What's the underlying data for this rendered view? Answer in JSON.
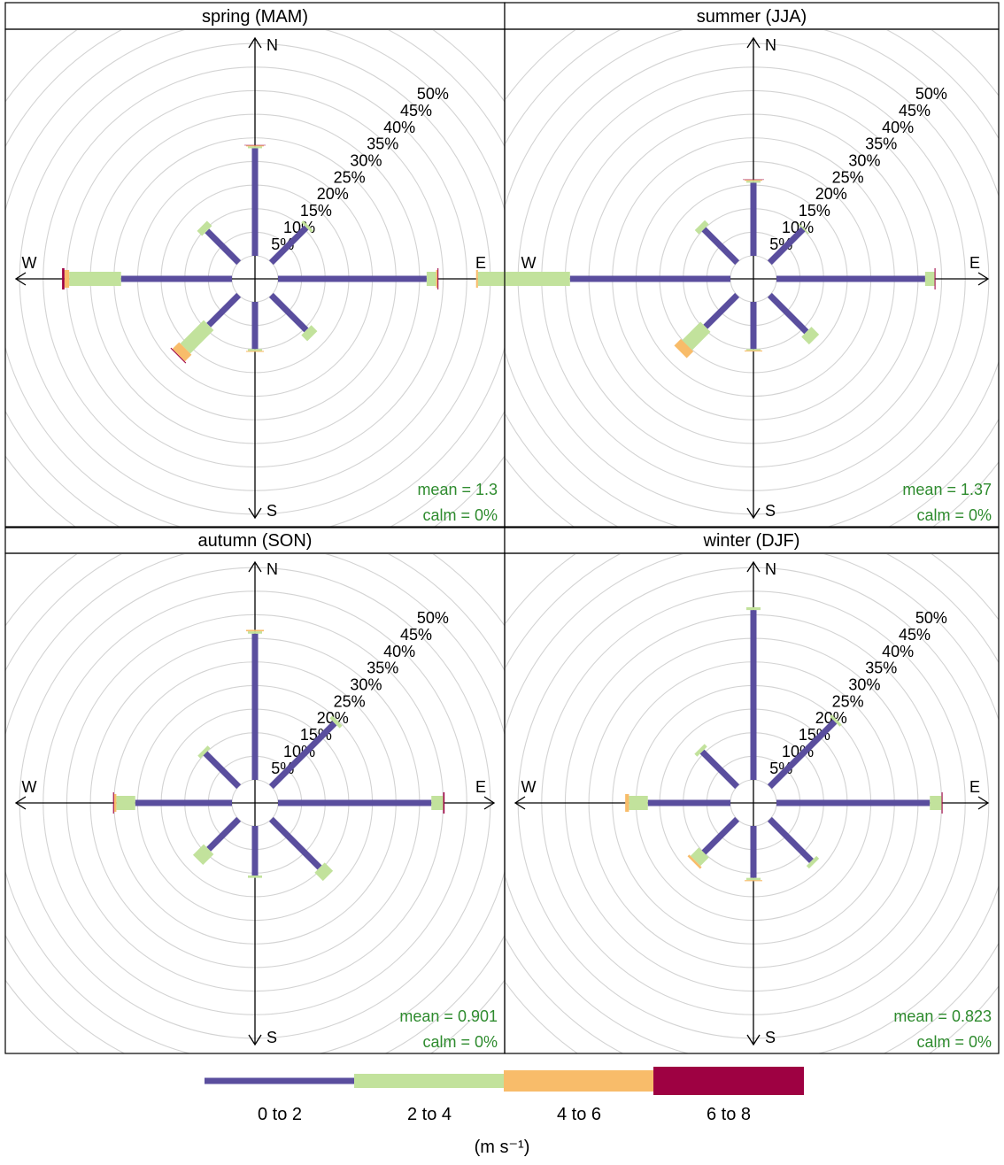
{
  "units_label": "(m s⁻¹)",
  "chart_data": {
    "type": "windrose",
    "axis": {
      "directions": [
        "N",
        "NE",
        "E",
        "SE",
        "S",
        "SW",
        "W",
        "NW"
      ],
      "compass_labels": [
        "N",
        "E",
        "S",
        "W"
      ],
      "ring_step_percent": 5,
      "ring_labels": [
        "5%",
        "10%",
        "15%",
        "20%",
        "25%",
        "30%",
        "35%",
        "40%",
        "45%",
        "50%"
      ],
      "grid": true
    },
    "legend": {
      "placement": "bottom",
      "bins": [
        {
          "label": "0 to 2",
          "color": "#5A4E9E"
        },
        {
          "label": "2 to 4",
          "color": "#C2E29C"
        },
        {
          "label": "4 to 6",
          "color": "#F8BC6A"
        },
        {
          "label": "6 to 8",
          "color": "#9E0142"
        }
      ]
    },
    "panels": [
      {
        "title": "spring (MAM)",
        "mean_text": "mean = 1.3",
        "calm_text": "calm = 0%",
        "values": {
          "N": [
            22.8,
            0.4,
            0.2,
            0.1
          ],
          "NE": [
            10.5,
            0.6,
            0.0,
            0.0
          ],
          "E": [
            31.5,
            2.0,
            0.3,
            0.2
          ],
          "SE": [
            10.5,
            1.8,
            0.0,
            0.0
          ],
          "S": [
            10.0,
            0.4,
            0.2,
            0.0
          ],
          "SW": [
            9.0,
            7.0,
            2.0,
            0.2
          ],
          "W": [
            23.5,
            11.0,
            1.0,
            0.5
          ],
          "NW": [
            9.5,
            1.5,
            0.0,
            0.0
          ]
        }
      },
      {
        "title": "summer (JJA)",
        "mean_text": "mean = 1.37",
        "calm_text": "calm = 0%",
        "values": {
          "N": [
            15.5,
            0.4,
            0.2,
            0.1
          ],
          "NE": [
            10.0,
            0.3,
            0.0,
            0.0
          ],
          "E": [
            31.5,
            2.0,
            0.0,
            0.2
          ],
          "SE": [
            11.0,
            2.3,
            0.0,
            0.0
          ],
          "S": [
            10.0,
            0.3,
            0.2,
            0.0
          ],
          "SW": [
            9.5,
            5.5,
            2.0,
            0.0
          ],
          "W": [
            34.0,
            19.5,
            0.4,
            0.0
          ],
          "NW": [
            10.0,
            1.2,
            0.0,
            0.0
          ]
        }
      },
      {
        "title": "autumn (SON)",
        "mean_text": "mean = 0.901",
        "calm_text": "calm = 0%",
        "values": {
          "N": [
            31.0,
            0.5,
            0.3,
            0.0
          ],
          "NE": [
            19.0,
            0.8,
            0.0,
            0.0
          ],
          "E": [
            32.5,
            2.5,
            0.0,
            0.3
          ],
          "SE": [
            14.5,
            2.5,
            0.0,
            0.0
          ],
          "S": [
            10.5,
            0.5,
            0.0,
            0.0
          ],
          "SW": [
            9.0,
            3.2,
            0.0,
            0.0
          ],
          "W": [
            20.5,
            4.0,
            0.5,
            0.2
          ],
          "NW": [
            10.0,
            0.8,
            0.0,
            0.0
          ]
        }
      },
      {
        "title": "winter (DJF)",
        "mean_text": "mean = 0.823",
        "calm_text": "calm = 0%",
        "values": {
          "N": [
            36.0,
            0.6,
            0.0,
            0.0
          ],
          "NE": [
            19.5,
            0.6,
            0.0,
            0.0
          ],
          "E": [
            32.5,
            2.5,
            0.0,
            0.2
          ],
          "SE": [
            12.5,
            0.8,
            0.0,
            0.0
          ],
          "S": [
            11.0,
            0.5,
            0.2,
            0.0
          ],
          "SW": [
            10.0,
            2.5,
            0.5,
            0.0
          ],
          "W": [
            17.5,
            4.0,
            0.8,
            0.0
          ],
          "NW": [
            10.5,
            0.8,
            0.0,
            0.0
          ]
        }
      }
    ]
  }
}
